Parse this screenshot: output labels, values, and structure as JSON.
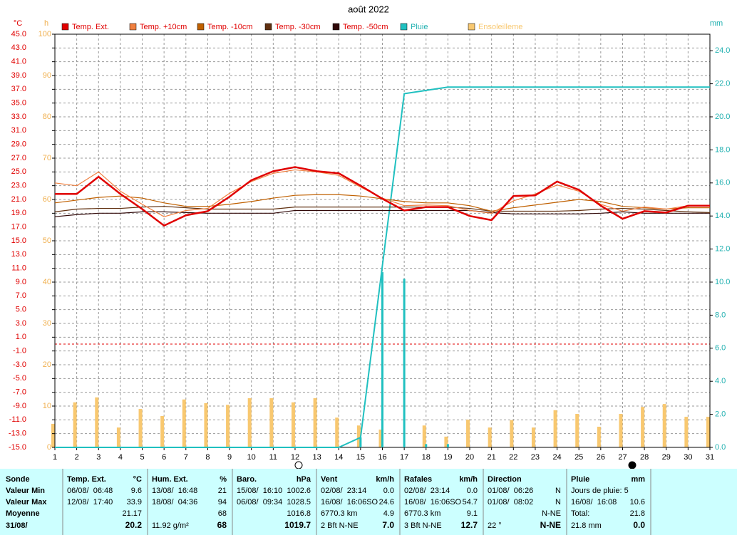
{
  "chart_data": {
    "type": "line",
    "title": "août 2022",
    "ylabel": "°C",
    "y2label": "h",
    "y3label": "mm",
    "x": [
      1,
      2,
      3,
      4,
      5,
      6,
      7,
      8,
      9,
      10,
      11,
      12,
      13,
      14,
      15,
      16,
      17,
      18,
      19,
      20,
      21,
      22,
      23,
      24,
      25,
      26,
      27,
      28,
      29,
      30,
      31
    ],
    "xlim": [
      1,
      31
    ],
    "xticks": [
      1,
      2,
      3,
      4,
      5,
      6,
      7,
      8,
      9,
      10,
      11,
      12,
      13,
      14,
      15,
      16,
      17,
      18,
      19,
      20,
      21,
      22,
      23,
      24,
      25,
      26,
      27,
      28,
      29,
      30,
      31
    ],
    "ylim": [
      -15,
      45
    ],
    "yticks": [
      {
        "value": -15,
        "label": "-15.0"
      },
      {
        "value": -13,
        "label": "-13.0"
      },
      {
        "value": -11,
        "label": "-11.0"
      },
      {
        "value": -9,
        "label": "-9.0"
      },
      {
        "value": -7,
        "label": "-7.0"
      },
      {
        "value": -5,
        "label": "-5.0"
      },
      {
        "value": -3,
        "label": "-3.0"
      },
      {
        "value": -1,
        "label": "-1.0"
      },
      {
        "value": 1,
        "label": "1.0"
      },
      {
        "value": 3,
        "label": "3.0"
      },
      {
        "value": 5,
        "label": "5.0"
      },
      {
        "value": 7,
        "label": "7.0"
      },
      {
        "value": 9,
        "label": "9.0"
      },
      {
        "value": 11,
        "label": "11.0"
      },
      {
        "value": 13,
        "label": "13.0"
      },
      {
        "value": 15,
        "label": "15.0"
      },
      {
        "value": 17,
        "label": "17.0"
      },
      {
        "value": 19,
        "label": "19.0"
      },
      {
        "value": 21,
        "label": "21.0"
      },
      {
        "value": 23,
        "label": "23.0"
      },
      {
        "value": 25,
        "label": "25.0"
      },
      {
        "value": 27,
        "label": "27.0"
      },
      {
        "value": 29,
        "label": "29.0"
      },
      {
        "value": 31,
        "label": "31.0"
      },
      {
        "value": 33,
        "label": "33.0"
      },
      {
        "value": 35,
        "label": "35.0"
      },
      {
        "value": 37,
        "label": "37.0"
      },
      {
        "value": 39,
        "label": "39.0"
      },
      {
        "value": 41,
        "label": "41.0"
      },
      {
        "value": 43,
        "label": "43.0"
      },
      {
        "value": 45,
        "label": "45.0"
      }
    ],
    "y2lim": [
      0,
      100
    ],
    "y2ticks": [
      0,
      10,
      20,
      30,
      40,
      50,
      60,
      70,
      80,
      90,
      100
    ],
    "y3lim": [
      0,
      25
    ],
    "y3ticks": [
      {
        "value": 0,
        "label": "0.0"
      },
      {
        "value": 2,
        "label": "2.0"
      },
      {
        "value": 4,
        "label": "4.0"
      },
      {
        "value": 6,
        "label": "6.0"
      },
      {
        "value": 8,
        "label": "8.0"
      },
      {
        "value": 10,
        "label": "10.0"
      },
      {
        "value": 12,
        "label": "12.0"
      },
      {
        "value": 14,
        "label": "14.0"
      },
      {
        "value": 16,
        "label": "16.0"
      },
      {
        "value": 18,
        "label": "18.0"
      },
      {
        "value": 20,
        "label": "20.0"
      },
      {
        "value": 22,
        "label": "22.0"
      },
      {
        "value": 24,
        "label": "24.0"
      }
    ],
    "grid": true,
    "freeze_line": 0,
    "series": [
      {
        "name": "Temp. Ext.",
        "color": "#e00000",
        "kind": "line",
        "values": [
          21.8,
          21.8,
          24.3,
          21.8,
          19.6,
          17.2,
          18.7,
          19.3,
          21.4,
          23.8,
          25.1,
          25.7,
          25.1,
          24.8,
          23.0,
          21.1,
          19.4,
          19.9,
          19.9,
          18.6,
          18.0,
          21.5,
          21.6,
          23.6,
          22.4,
          20.1,
          18.2,
          19.3,
          19.1,
          20.1,
          20.1
        ]
      },
      {
        "name": "Temp. +10cm",
        "color": "#f08040",
        "kind": "line",
        "values": [
          23.4,
          23.0,
          25.0,
          22.2,
          20.3,
          18.5,
          19.4,
          19.7,
          21.9,
          23.6,
          24.8,
          25.3,
          25.0,
          24.5,
          22.8,
          21.2,
          20.1,
          20.2,
          20.1,
          19.4,
          19.0,
          20.8,
          21.8,
          23.1,
          22.2,
          20.3,
          19.3,
          19.9,
          19.6,
          20.1,
          20.1
        ]
      },
      {
        "name": "Temp. -10cm",
        "color": "#c06000",
        "kind": "line",
        "values": [
          20.5,
          20.9,
          21.3,
          21.5,
          21.2,
          20.5,
          20.0,
          20.0,
          20.3,
          20.7,
          21.2,
          21.6,
          21.7,
          21.7,
          21.5,
          21.1,
          20.7,
          20.5,
          20.5,
          20.1,
          19.3,
          19.8,
          20.2,
          20.6,
          21.0,
          20.7,
          20.0,
          19.8,
          19.6,
          19.8,
          19.8
        ]
      },
      {
        "name": "Temp. -30cm",
        "color": "#603010",
        "kind": "line",
        "values": [
          19.2,
          19.6,
          19.7,
          19.7,
          19.9,
          20.0,
          19.8,
          19.6,
          19.6,
          19.6,
          19.6,
          19.9,
          19.9,
          19.9,
          19.9,
          19.9,
          19.9,
          19.9,
          19.9,
          19.7,
          19.3,
          19.3,
          19.3,
          19.3,
          19.4,
          19.6,
          19.7,
          19.6,
          19.4,
          19.2,
          19.1
        ]
      },
      {
        "name": "Temp. -50cm",
        "color": "#300808",
        "kind": "line",
        "values": [
          18.5,
          18.8,
          19.0,
          19.0,
          19.2,
          19.2,
          19.1,
          19.0,
          19.0,
          19.0,
          19.0,
          19.4,
          19.4,
          19.4,
          19.4,
          19.4,
          19.4,
          19.4,
          19.4,
          19.4,
          19.1,
          18.9,
          18.9,
          18.9,
          18.9,
          19.0,
          19.2,
          19.0,
          19.0,
          19.0,
          19.0
        ]
      },
      {
        "name": "Pluie",
        "color": "#20c0c0",
        "kind": "line",
        "axis": "y3",
        "values": [
          0,
          0,
          0,
          0,
          0,
          0,
          0,
          0,
          0,
          0,
          0,
          0,
          0,
          0,
          0.6,
          11.0,
          21.4,
          21.6,
          21.8,
          21.8,
          21.8,
          21.8,
          21.8,
          21.8,
          21.8,
          21.8,
          21.8,
          21.8,
          21.8,
          21.8,
          21.8
        ],
        "bar_values": [
          0,
          0,
          0,
          0,
          0,
          0,
          0,
          0,
          0,
          0,
          0,
          0,
          0,
          0,
          0.6,
          10.6,
          10.2,
          0.2,
          0.2,
          0,
          0,
          0,
          0,
          0,
          0,
          0,
          0,
          0,
          0,
          0,
          0
        ]
      },
      {
        "name": "Ensoleilleme",
        "color": "#f8c870",
        "kind": "bar",
        "axis": "y2",
        "values": [
          5.7,
          10.9,
          12.1,
          4.8,
          9.3,
          7.6,
          11.6,
          10.7,
          10.3,
          11.9,
          11.9,
          10.9,
          11.9,
          7.2,
          5.3,
          4.3,
          0,
          5.3,
          2.6,
          6.7,
          4.8,
          6.6,
          4.8,
          9.0,
          8.1,
          5.0,
          8.1,
          9.8,
          10.5,
          7.4,
          7.4
        ]
      }
    ]
  },
  "table": {
    "labels": [
      "Sonde",
      "Valeur Min",
      "Valeur Max",
      "Moyenne",
      "31/08/"
    ],
    "columns": [
      {
        "title": "Temp. Ext.",
        "unit": "°C",
        "rows": [
          [
            "06/08/  06:48",
            "9.6"
          ],
          [
            "12/08/  17:40",
            "33.9"
          ],
          [
            null,
            "21.17"
          ],
          [
            null,
            "20.2"
          ]
        ]
      },
      {
        "title": "Hum. Ext.",
        "unit": "%",
        "rows": [
          [
            "13/08/  16:48",
            "21"
          ],
          [
            "18/08/  04:36",
            "94"
          ],
          [
            null,
            "68"
          ],
          [
            "11.92 g/m²",
            "68"
          ]
        ]
      },
      {
        "title": "Baro.",
        "unit": "hPa",
        "rows": [
          [
            "15/08/  16:10",
            "1002.6"
          ],
          [
            "06/08/  09:34",
            "1028.5"
          ],
          [
            null,
            "1016.8"
          ],
          [
            null,
            "1019.7"
          ]
        ]
      },
      {
        "title": "Vent",
        "unit": "km/h",
        "rows": [
          [
            "02/08/  23:14",
            "0.0"
          ],
          [
            "16/08/  16:06SO",
            "24.6"
          ],
          [
            "6770.3 km",
            "4.9"
          ],
          [
            "2 Bft N-NE",
            "7.0"
          ]
        ]
      },
      {
        "title": "Rafales",
        "unit": "km/h",
        "rows": [
          [
            "02/08/  23:14",
            "0.0"
          ],
          [
            "16/08/  16:06SO",
            "54.7"
          ],
          [
            "6770.3 km",
            "9.1"
          ],
          [
            "3 Bft N-NE",
            "12.7"
          ]
        ]
      },
      {
        "title": "Direction",
        "rows": [
          [
            "01/08/  06:26",
            "N"
          ],
          [
            "01/08/  08:02",
            "N"
          ],
          [
            null,
            "N-NE"
          ],
          [
            "22 °",
            "N-NE"
          ]
        ]
      },
      {
        "title": "Pluie",
        "unit": "mm",
        "rows": [
          [
            "Jours de pluie: 5",
            null
          ],
          [
            "16/08/  16:08",
            "10.6"
          ],
          [
            "Total:",
            "21.8"
          ],
          [
            "21.8 mm",
            "0.0"
          ]
        ]
      }
    ]
  }
}
